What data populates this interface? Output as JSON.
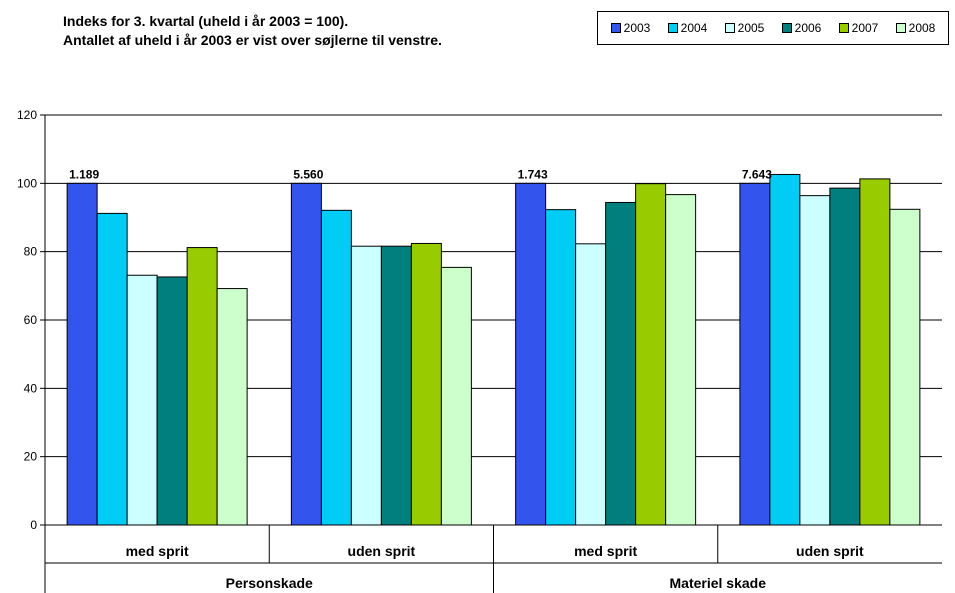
{
  "chart_data": {
    "type": "bar",
    "title_lines": [
      "Indeks for 3. kvartal (uheld i år 2003 = 100).",
      "Antallet af uheld i år 2003 er vist over søjlerne til venstre."
    ],
    "ylim": [
      0,
      120
    ],
    "yticks": [
      0,
      20,
      40,
      60,
      80,
      100,
      120
    ],
    "grid": true,
    "legend_position": "top-right",
    "categories": [
      "med sprit",
      "uden sprit",
      "med sprit",
      "uden sprit"
    ],
    "groups": [
      {
        "label": "Personskade",
        "span": [
          0,
          1
        ]
      },
      {
        "label": "Materiel skade",
        "span": [
          2,
          3
        ]
      }
    ],
    "bar_labels": [
      "1.189",
      "5.560",
      "1.743",
      "7.643"
    ],
    "series": [
      {
        "name": "2003",
        "color": "#3355ee",
        "values": [
          100,
          100,
          100,
          100
        ]
      },
      {
        "name": "2004",
        "color": "#00ccf5",
        "values": [
          91.2,
          92.1,
          92.3,
          102.6
        ]
      },
      {
        "name": "2005",
        "color": "#ccffff",
        "values": [
          73.1,
          81.6,
          82.3,
          96.4
        ]
      },
      {
        "name": "2006",
        "color": "#007f7f",
        "values": [
          72.6,
          81.6,
          94.4,
          98.6
        ]
      },
      {
        "name": "2007",
        "color": "#99cc00",
        "values": [
          81.2,
          82.4,
          99.9,
          101.3
        ]
      },
      {
        "name": "2008",
        "color": "#ccffcc",
        "values": [
          69.2,
          75.4,
          96.7,
          92.4
        ]
      }
    ]
  }
}
